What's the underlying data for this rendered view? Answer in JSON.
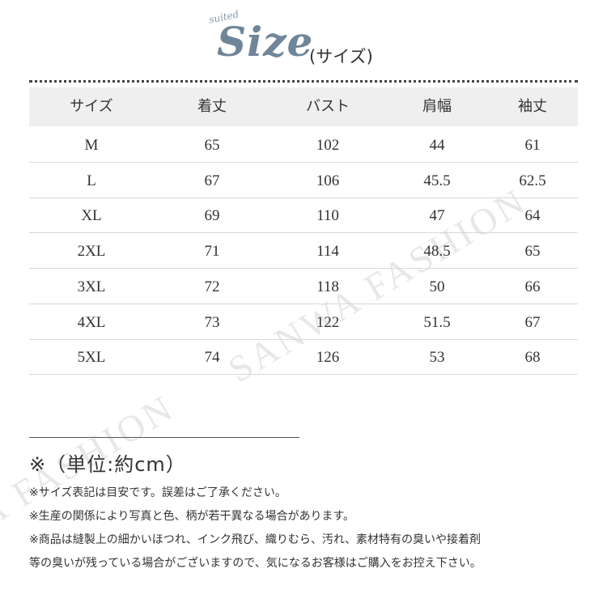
{
  "header": {
    "tag": "suited",
    "title": "Size",
    "subtitle": "(サイズ)"
  },
  "table": {
    "columns": [
      "サイズ",
      "着丈",
      "バスト",
      "肩幅",
      "袖丈"
    ],
    "rows": [
      [
        "M",
        "65",
        "102",
        "44",
        "61"
      ],
      [
        "L",
        "67",
        "106",
        "45.5",
        "62.5"
      ],
      [
        "XL",
        "69",
        "110",
        "47",
        "64"
      ],
      [
        "2XL",
        "71",
        "114",
        "48.5",
        "65"
      ],
      [
        "3XL",
        "72",
        "118",
        "50",
        "66"
      ],
      [
        "4XL",
        "73",
        "122",
        "51.5",
        "67"
      ],
      [
        "5XL",
        "74",
        "126",
        "53",
        "68"
      ]
    ]
  },
  "unit_note": "※（単位:約cm）",
  "notes": [
    "※サイズ表記は目安です。誤差はご了承ください。",
    "※生産の関係により写真と色、柄が若干異なる場合があります。",
    "※商品は縫製上の細かいほつれ、インク飛び、織りむら、汚れ、素材特有の臭いや接着剤",
    "等の臭いが残っている場合がございますので、気になるお客様はご購入をお控え下さい。"
  ],
  "watermark": [
    "A FASHION",
    "SANWA FASHION"
  ]
}
